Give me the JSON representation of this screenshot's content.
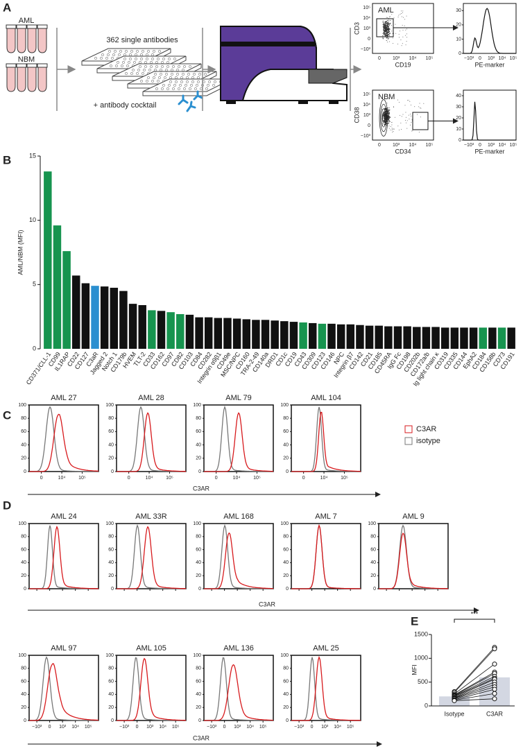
{
  "panel_a": {
    "label": "A",
    "tubes": [
      "AML",
      "NBM"
    ],
    "plate_text": "362 single antibodies",
    "cocktail_text": "+ antibody cocktail",
    "dot_plots": [
      {
        "title": "AML",
        "x_label": "CD19",
        "y_label": "CD3"
      },
      {
        "title": "NBM",
        "x_label": "CD34",
        "y_label": "CD38"
      }
    ],
    "dot_xticks": [
      "0",
      "10³",
      "10⁴",
      "10⁵"
    ],
    "dot_yticks": [
      "−10³",
      "0",
      "10³",
      "10⁴",
      "10⁵"
    ],
    "histograms": [
      {
        "x_label": "PE-marker",
        "ylim": [
          0,
          35
        ],
        "yticks": [
          0,
          10,
          20,
          30
        ]
      },
      {
        "x_label": "PE-marker",
        "ylim": [
          0,
          45
        ],
        "yticks": [
          0,
          10,
          20,
          30,
          40
        ]
      }
    ],
    "hist_xticks": [
      "−10³",
      "0",
      "10³",
      "10⁴",
      "10⁵"
    ]
  },
  "chart_data": [
    {
      "type": "bar",
      "label": "B",
      "y_label": "AML/NBM (MFI)",
      "categories": [
        "CD371/CLL-1",
        "CD99",
        "IL1RAP",
        "CD22",
        "CD127",
        "C3aR",
        "Jagged 2",
        "Notch 1",
        "CD179b",
        "HVEM",
        "TLT-2",
        "CD33",
        "CD162",
        "CD97",
        "CD82",
        "CD103",
        "CD84",
        "CD282",
        "Integrin α9β1",
        "CD49e",
        "MSC/NPC",
        "CD160",
        "TRA-2-49",
        "CD140a",
        "DRD1",
        "CD1c",
        "CD19",
        "CD43",
        "CD309",
        "CD123",
        "CD146",
        "NPC",
        "Integrin β7",
        "CD142",
        "CD21",
        "CD185",
        "CD45RA",
        "IgG Fc",
        "CD198",
        "CD202b",
        "CD172a/b",
        "Ig light chain κ",
        "CD319",
        "CD335",
        "CD144",
        "EphA2",
        "CD184",
        "CD158b",
        "CD73",
        "CD191"
      ],
      "values": [
        13.8,
        9.6,
        7.6,
        5.7,
        5.1,
        4.9,
        4.85,
        4.75,
        4.5,
        3.5,
        3.4,
        3.0,
        2.95,
        2.85,
        2.7,
        2.65,
        2.45,
        2.45,
        2.4,
        2.4,
        2.35,
        2.3,
        2.25,
        2.25,
        2.2,
        2.15,
        2.1,
        2.05,
        2.0,
        1.95,
        1.95,
        1.9,
        1.9,
        1.85,
        1.8,
        1.8,
        1.75,
        1.75,
        1.75,
        1.7,
        1.7,
        1.7,
        1.65,
        1.65,
        1.65,
        1.65,
        1.65,
        1.65,
        1.65,
        1.65
      ],
      "colors": [
        "#17944f",
        "#17944f",
        "#17944f",
        "#111",
        "#111",
        "#2a8fd0",
        "#111",
        "#111",
        "#111",
        "#111",
        "#111",
        "#17944f",
        "#111",
        "#17944f",
        "#17944f",
        "#111",
        "#111",
        "#111",
        "#111",
        "#111",
        "#111",
        "#111",
        "#111",
        "#111",
        "#111",
        "#111",
        "#111",
        "#17944f",
        "#111",
        "#17944f",
        "#111",
        "#111",
        "#111",
        "#111",
        "#111",
        "#111",
        "#111",
        "#111",
        "#111",
        "#111",
        "#111",
        "#111",
        "#111",
        "#111",
        "#111",
        "#111",
        "#17944f",
        "#111",
        "#17944f",
        "#111"
      ],
      "ylim": [
        0,
        15
      ],
      "yticks": [
        0,
        5,
        10,
        15
      ]
    },
    {
      "type": "paired",
      "label": "E",
      "y_label": "MFI",
      "significance": "***",
      "categories": [
        "Isotype",
        "C3AR"
      ],
      "values": [
        200,
        600
      ],
      "color": "#d3d7e2",
      "points": [
        [
          300,
          280,
          250,
          230,
          220,
          210,
          200,
          180,
          170,
          160,
          150,
          130,
          120,
          110
        ],
        [
          1230,
          1200,
          880,
          710,
          680,
          620,
          580,
          560,
          500,
          450,
          400,
          350,
          260,
          150
        ]
      ],
      "ylim": [
        0,
        1500
      ],
      "yticks": [
        0,
        500,
        1000,
        1500
      ]
    }
  ],
  "panel_c": {
    "label": "C",
    "titles": [
      "AML 27",
      "AML 28",
      "AML 79",
      "AML 104"
    ],
    "legend": [
      "C3AR",
      "isotype"
    ],
    "legend_colors": [
      "#d7191c",
      "#777777"
    ],
    "x_label": "C3AR",
    "ylim": [
      0,
      100
    ],
    "yticks": [
      0,
      20,
      40,
      60,
      80,
      100
    ],
    "xticks": [
      "0",
      "10⁴",
      "10⁵"
    ]
  },
  "panel_d": {
    "label": "D",
    "titles": [
      "AML 24",
      "AML 33R",
      "AML 168",
      "AML 7",
      "AML 9",
      "AML 97",
      "AML 105",
      "AML 136",
      "AML 25"
    ],
    "x_label": "C3AR",
    "ylim": [
      0,
      100
    ],
    "yticks": [
      0,
      20,
      40,
      60,
      80,
      100
    ],
    "xticks": [
      "−10³",
      "0",
      "10³",
      "10⁴",
      "10⁵"
    ]
  }
}
